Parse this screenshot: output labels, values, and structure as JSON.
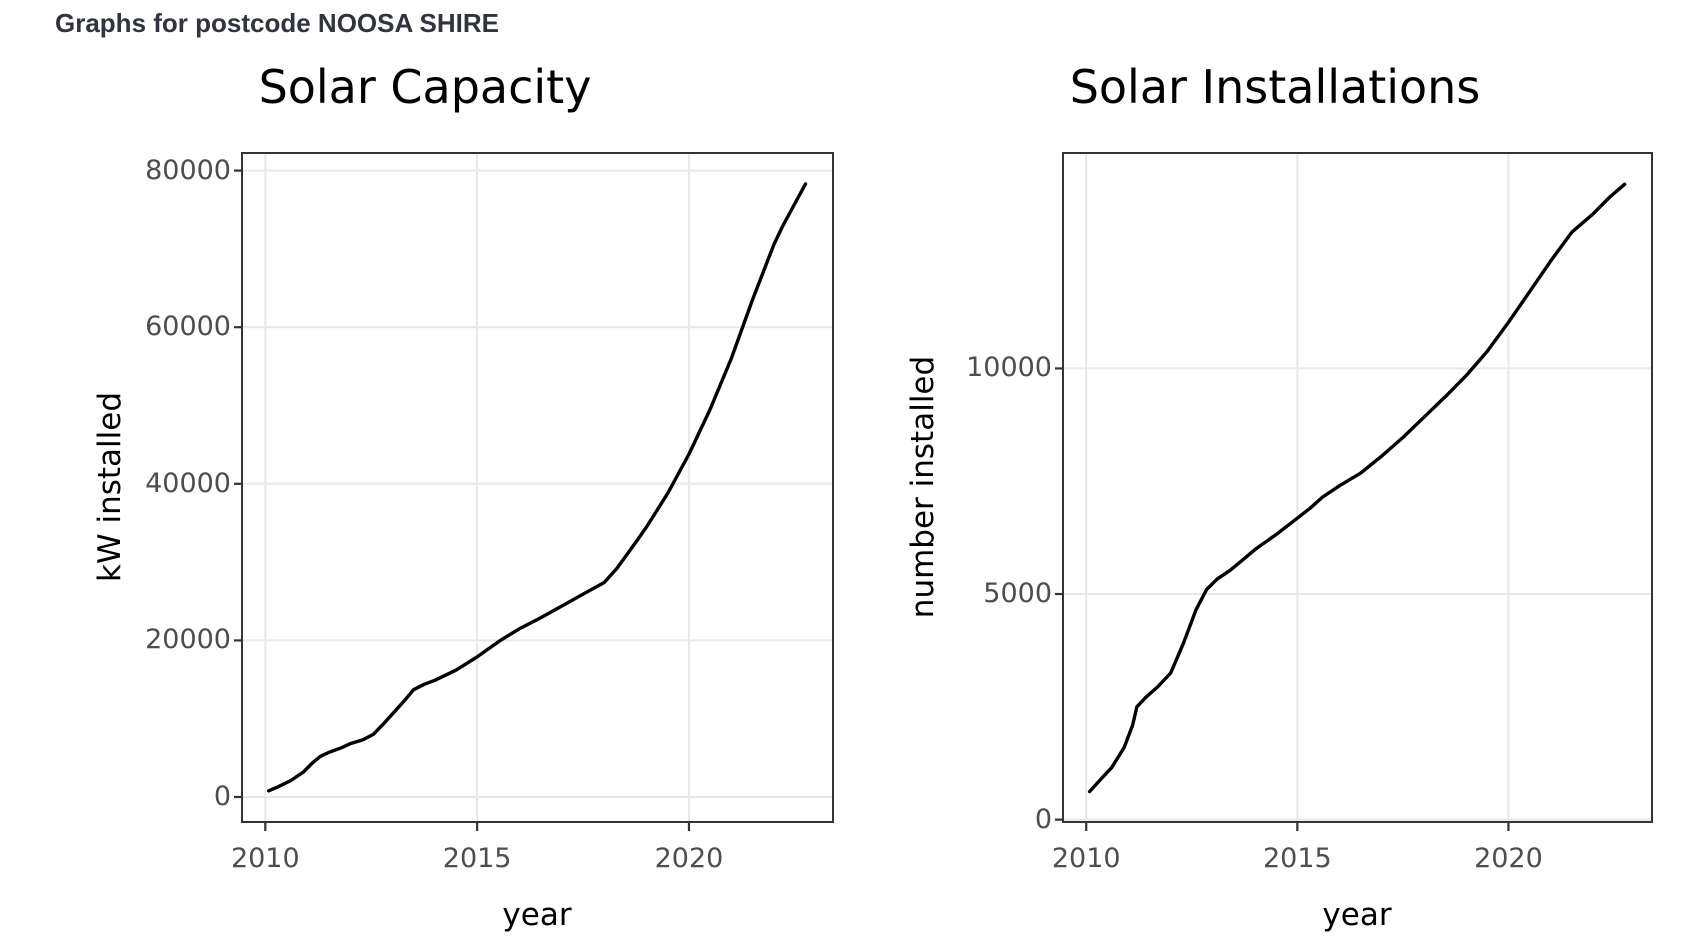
{
  "header": {
    "title": "Graphs for postcode NOOSA SHIRE"
  },
  "colors": {
    "background": "#ffffff",
    "header_text": "#31333F",
    "title_text": "#000000",
    "axis_title_text": "#000000",
    "tick_label_text": "#4D4D4D",
    "panel_border": "#343434",
    "grid_line": "#E7E7E7",
    "tick_mark": "#333333",
    "series_line": "#000000"
  },
  "chart_data": [
    {
      "type": "line",
      "title": "Solar Capacity",
      "xlabel": "year",
      "ylabel": "kW installed",
      "legend": "none",
      "grid": "major-only",
      "x_ticks": [
        2010,
        2015,
        2020
      ],
      "x_tick_labels": [
        "2010",
        "2015",
        "2020"
      ],
      "y_ticks": [
        0,
        20000,
        40000,
        60000,
        80000
      ],
      "y_tick_labels": [
        "0",
        "20000",
        "40000",
        "60000",
        "80000"
      ],
      "x_range": [
        2009.45,
        2023.4
      ],
      "y_range": [
        -3190,
        82375
      ],
      "series_name": "cumulative kW installed",
      "points": [
        [
          2010.08,
          800
        ],
        [
          2010.3,
          1300
        ],
        [
          2010.6,
          2100
        ],
        [
          2010.9,
          3200
        ],
        [
          2011.1,
          4300
        ],
        [
          2011.3,
          5200
        ],
        [
          2011.5,
          5700
        ],
        [
          2011.8,
          6300
        ],
        [
          2012.0,
          6800
        ],
        [
          2012.3,
          7300
        ],
        [
          2012.55,
          8000
        ],
        [
          2012.8,
          9400
        ],
        [
          2013.05,
          10900
        ],
        [
          2013.3,
          12400
        ],
        [
          2013.5,
          13700
        ],
        [
          2013.75,
          14400
        ],
        [
          2014.0,
          14900
        ],
        [
          2014.5,
          16200
        ],
        [
          2015.0,
          17900
        ],
        [
          2015.55,
          20000
        ],
        [
          2016.0,
          21500
        ],
        [
          2016.5,
          22900
        ],
        [
          2017.0,
          24400
        ],
        [
          2017.5,
          25900
        ],
        [
          2018.0,
          27400
        ],
        [
          2018.3,
          29200
        ],
        [
          2018.7,
          32200
        ],
        [
          2019.0,
          34500
        ],
        [
          2019.5,
          38800
        ],
        [
          2020.0,
          43800
        ],
        [
          2020.5,
          49500
        ],
        [
          2021.0,
          56000
        ],
        [
          2021.5,
          63500
        ],
        [
          2022.0,
          70500
        ],
        [
          2022.2,
          72800
        ],
        [
          2022.5,
          75800
        ],
        [
          2022.75,
          78300
        ]
      ]
    },
    {
      "type": "line",
      "title": "Solar Installations",
      "xlabel": "year",
      "ylabel": "number installed",
      "legend": "none",
      "grid": "major-only",
      "x_ticks": [
        2010,
        2015,
        2020
      ],
      "x_tick_labels": [
        "2010",
        "2015",
        "2020"
      ],
      "y_ticks": [
        0,
        5000,
        10000
      ],
      "y_tick_labels": [
        "0",
        "5000",
        "10000"
      ],
      "x_range": [
        2009.45,
        2023.4
      ],
      "y_range": [
        -53,
        14797
      ],
      "series_name": "cumulative number installed",
      "points": [
        [
          2010.08,
          620
        ],
        [
          2010.35,
          900
        ],
        [
          2010.6,
          1150
        ],
        [
          2010.9,
          1600
        ],
        [
          2011.1,
          2100
        ],
        [
          2011.2,
          2500
        ],
        [
          2011.4,
          2700
        ],
        [
          2011.7,
          2950
        ],
        [
          2012.0,
          3250
        ],
        [
          2012.3,
          3900
        ],
        [
          2012.6,
          4650
        ],
        [
          2012.85,
          5100
        ],
        [
          2013.1,
          5330
        ],
        [
          2013.4,
          5520
        ],
        [
          2013.7,
          5750
        ],
        [
          2014.0,
          5990
        ],
        [
          2014.5,
          6320
        ],
        [
          2015.0,
          6680
        ],
        [
          2015.3,
          6900
        ],
        [
          2015.6,
          7150
        ],
        [
          2016.0,
          7400
        ],
        [
          2016.5,
          7680
        ],
        [
          2017.0,
          8060
        ],
        [
          2017.5,
          8470
        ],
        [
          2018.0,
          8920
        ],
        [
          2018.5,
          9370
        ],
        [
          2019.0,
          9840
        ],
        [
          2019.5,
          10380
        ],
        [
          2020.0,
          11020
        ],
        [
          2020.5,
          11700
        ],
        [
          2021.0,
          12380
        ],
        [
          2021.5,
          13020
        ],
        [
          2022.0,
          13420
        ],
        [
          2022.4,
          13800
        ],
        [
          2022.75,
          14080
        ]
      ]
    }
  ]
}
